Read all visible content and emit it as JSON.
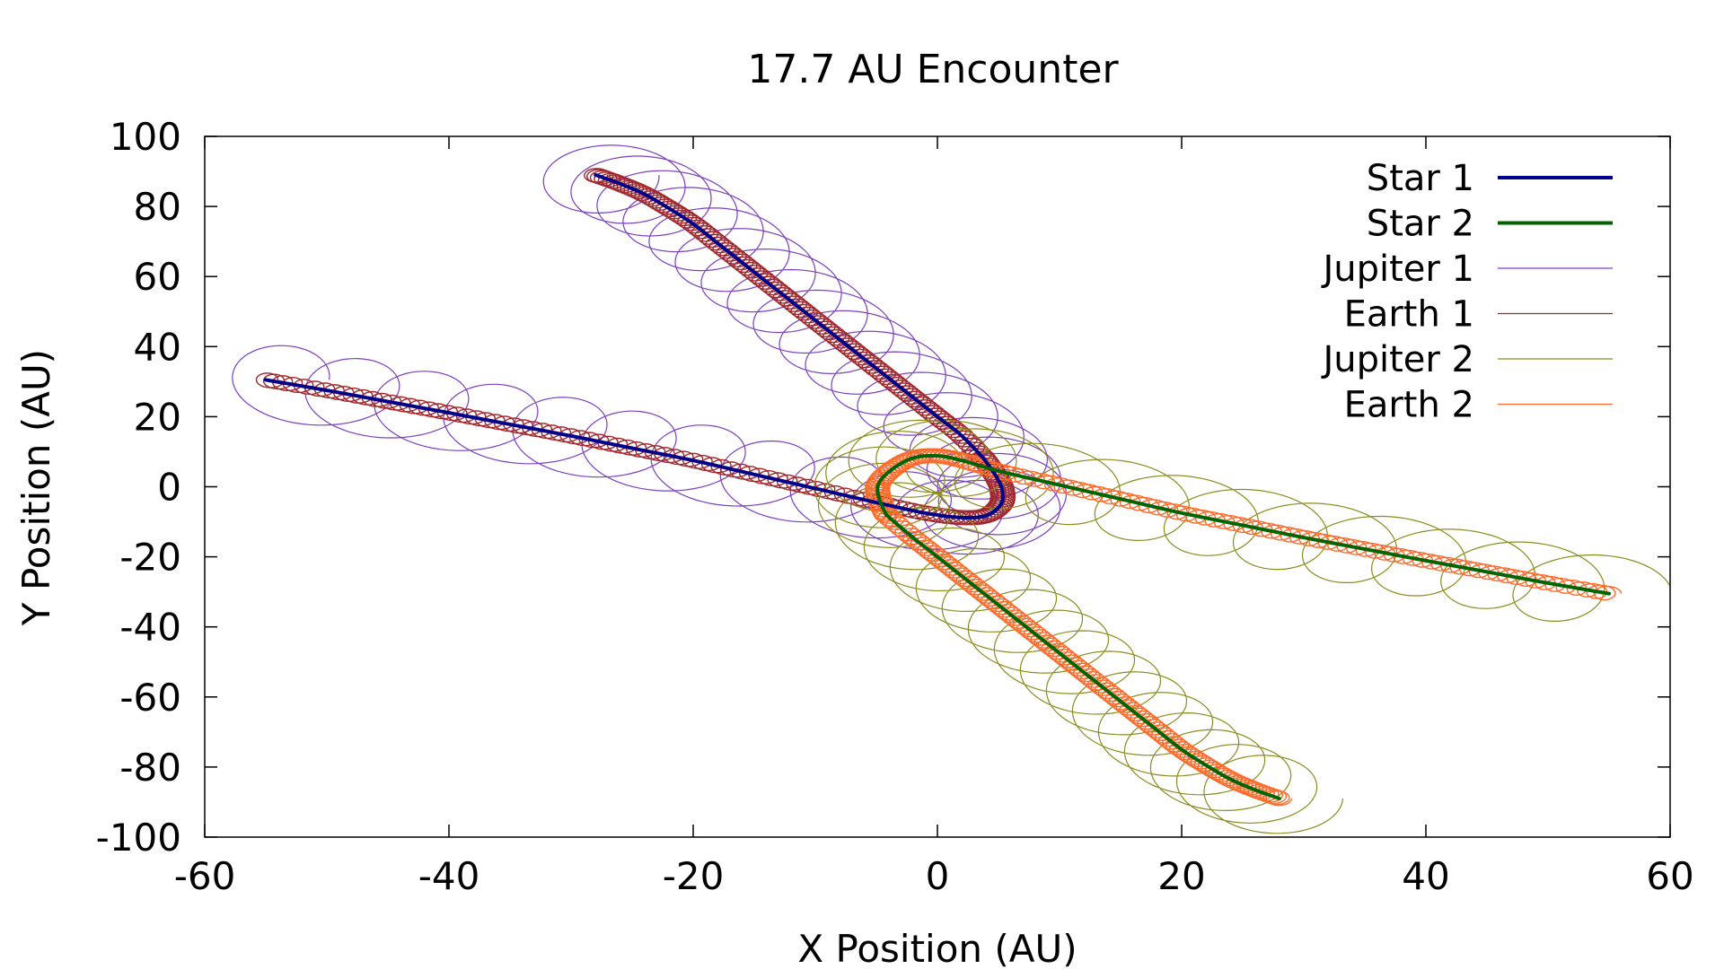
{
  "chart_data": {
    "type": "line",
    "title": "17.7 AU Encounter",
    "xlabel": "X Position (AU)",
    "ylabel": "Y Position (AU)",
    "xlim": [
      -60,
      60
    ],
    "ylim": [
      -100,
      100
    ],
    "xticks": [
      -60,
      -40,
      -20,
      0,
      20,
      40,
      60
    ],
    "yticks": [
      -100,
      -80,
      -60,
      -40,
      -20,
      0,
      20,
      40,
      60,
      80,
      100
    ],
    "xtick_labels": [
      "-60",
      "-40",
      "-20",
      "0",
      "20",
      "40",
      "60"
    ],
    "ytick_labels": [
      "-100",
      "-80",
      "-60",
      "-40",
      "-20",
      "0",
      "20",
      "40",
      "60",
      "80",
      "100"
    ],
    "grid": false,
    "legend_position": "top-right",
    "series": [
      {
        "name": "Star 1",
        "color": "#00008b",
        "style": "thick",
        "x": [
          -55,
          -50,
          -45,
          -40,
          -35,
          -30,
          -25,
          -20,
          -15,
          -10,
          -5,
          -1,
          2,
          4,
          5.2,
          5.3,
          4.8,
          3.8
        ],
        "y": [
          30.5,
          27.5,
          24.3,
          21.1,
          17.8,
          14.5,
          11.0,
          7.5,
          3.5,
          -0.5,
          -4.5,
          -7.5,
          -8.8,
          -8.2,
          -5.0,
          -1.0,
          3.0,
          8.0
        ]
      },
      {
        "name": "Star 1",
        "color": "#00008b",
        "style": "thick",
        "x": [
          3.8,
          2.0,
          0,
          -2,
          -4,
          -6,
          -8,
          -10,
          -12,
          -14,
          -16,
          -18,
          -20,
          -22,
          -24,
          -26,
          -28
        ],
        "y": [
          8.0,
          14.5,
          20.0,
          25.5,
          31.0,
          36.5,
          42.0,
          47.5,
          53.0,
          58.5,
          64.0,
          69.5,
          75.0,
          79.5,
          83.5,
          86.5,
          89.0
        ]
      },
      {
        "name": "Star 2",
        "color": "#006400",
        "style": "thick",
        "x": [
          55,
          50,
          45,
          40,
          35,
          30,
          25,
          20,
          15,
          10,
          5,
          2,
          0,
          -2,
          -3.7,
          -4.8,
          -4.8,
          -4.2
        ],
        "y": [
          -30.5,
          -27.5,
          -24.3,
          -21.1,
          -17.8,
          -14.5,
          -11.0,
          -7.5,
          -3.5,
          0.5,
          4.5,
          7.5,
          8.8,
          8.2,
          5.0,
          1.0,
          -3.0,
          -8.0
        ]
      },
      {
        "name": "Star 2",
        "color": "#006400",
        "style": "thick",
        "x": [
          -4.2,
          -2.0,
          0,
          2,
          4,
          6,
          8,
          10,
          12,
          14,
          16,
          18,
          20,
          22,
          24,
          26,
          28
        ],
        "y": [
          -8.0,
          -14.5,
          -20.0,
          -25.5,
          -31.0,
          -36.5,
          -42.0,
          -47.5,
          -53.0,
          -58.5,
          -64.0,
          -69.5,
          -75.0,
          -79.5,
          -83.5,
          -86.5,
          -89.0
        ]
      },
      {
        "name": "Jupiter 1",
        "color": "#7b3fbf",
        "style": "orbit",
        "orbit_radius": 5.2,
        "center_series": [
          0,
          1
        ]
      },
      {
        "name": "Earth 1",
        "color": "#a0282c",
        "style": "orbit",
        "orbit_radius": 1.0,
        "center_series": [
          0,
          1
        ]
      },
      {
        "name": "Jupiter 2",
        "color": "#8c8c1e",
        "style": "orbit",
        "orbit_radius": 5.2,
        "center_series": [
          2,
          3
        ]
      },
      {
        "name": "Earth 2",
        "color": "#ff6a2a",
        "style": "orbit",
        "orbit_radius": 1.0,
        "center_series": [
          2,
          3
        ]
      }
    ],
    "legend": [
      {
        "label": "Star 1",
        "color": "#00008b",
        "width": 4
      },
      {
        "label": "Star 2",
        "color": "#006400",
        "width": 4
      },
      {
        "label": "Jupiter 1",
        "color": "#7b3fbf",
        "width": 1.2
      },
      {
        "label": "Earth 1",
        "color": "#a0282c",
        "width": 1.2
      },
      {
        "label": "Jupiter 2",
        "color": "#8c8c1e",
        "width": 1.2
      },
      {
        "label": "Earth 2",
        "color": "#ff6a2a",
        "width": 1.2
      }
    ]
  }
}
